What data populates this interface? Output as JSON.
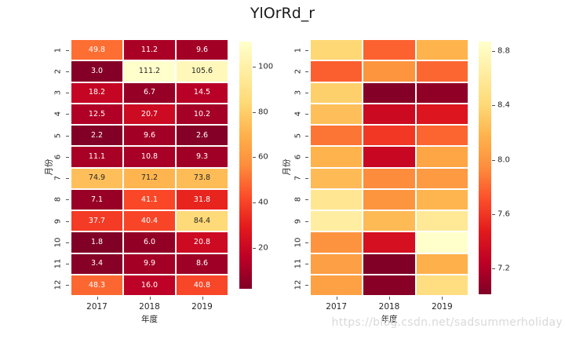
{
  "title": "YlOrRd_r",
  "watermark": "https://blog.csdn.net/sadsummerholiday",
  "colors": {
    "background": "#ffffff",
    "tick_label": "#262626",
    "annotation_dark": "#262626",
    "annotation_light": "#ffffff",
    "cell_gap": "#ffffff",
    "watermark": "#d9d9d9"
  },
  "colormap": {
    "name": "YlOrRd_r",
    "stops_low_to_high": [
      "#800026",
      "#bd0026",
      "#e31a1c",
      "#fc4e2a",
      "#fd8d3c",
      "#feb24c",
      "#fed976",
      "#ffeda0",
      "#ffffcc"
    ]
  },
  "chart_data": [
    {
      "type": "heatmap",
      "name": "annotated-heatmap",
      "xlabel": "年度",
      "ylabel": "月份",
      "x_categories": [
        "2017",
        "2018",
        "2019"
      ],
      "y_categories": [
        "1",
        "2",
        "3",
        "4",
        "5",
        "6",
        "7",
        "8",
        "9",
        "10",
        "11",
        "12"
      ],
      "annotated": true,
      "annotation_decimals": 1,
      "vmin": 1.8,
      "vmax": 111.2,
      "colorbar_ticks": [
        "20",
        "40",
        "60",
        "80",
        "100"
      ],
      "values": [
        [
          49.8,
          11.2,
          9.6
        ],
        [
          3.0,
          111.2,
          105.6
        ],
        [
          18.2,
          6.7,
          14.5
        ],
        [
          12.5,
          20.7,
          10.2
        ],
        [
          2.2,
          9.6,
          2.6
        ],
        [
          11.1,
          10.8,
          9.3
        ],
        [
          74.9,
          71.2,
          73.8
        ],
        [
          7.1,
          41.1,
          31.8
        ],
        [
          37.7,
          40.4,
          84.4
        ],
        [
          1.8,
          6.0,
          20.8
        ],
        [
          3.4,
          9.9,
          8.6
        ],
        [
          48.3,
          16.0,
          40.8
        ]
      ]
    },
    {
      "type": "heatmap",
      "name": "plain-heatmap",
      "xlabel": "年度",
      "ylabel": "月份",
      "x_categories": [
        "2017",
        "2018",
        "2019"
      ],
      "y_categories": [
        "1",
        "2",
        "3",
        "4",
        "5",
        "6",
        "7",
        "8",
        "9",
        "10",
        "11",
        "12"
      ],
      "annotated": false,
      "annotation_decimals": 2,
      "vmin": 7.01,
      "vmax": 8.87,
      "colorbar_ticks": [
        "7.2",
        "7.6",
        "8.0",
        "8.4",
        "8.8"
      ],
      "values": [
        [
          8.4,
          7.78,
          8.18
        ],
        [
          7.77,
          7.99,
          7.8
        ],
        [
          8.35,
          7.03,
          7.07
        ],
        [
          8.25,
          7.33,
          7.43
        ],
        [
          7.85,
          7.61,
          7.79
        ],
        [
          8.18,
          7.31,
          8.09
        ],
        [
          8.22,
          7.94,
          8.02
        ],
        [
          8.56,
          7.99,
          8.19
        ],
        [
          8.65,
          8.22,
          8.59
        ],
        [
          7.98,
          7.39,
          8.87
        ],
        [
          8.05,
          7.01,
          8.16
        ],
        [
          8.06,
          7.04,
          8.46
        ]
      ]
    }
  ]
}
